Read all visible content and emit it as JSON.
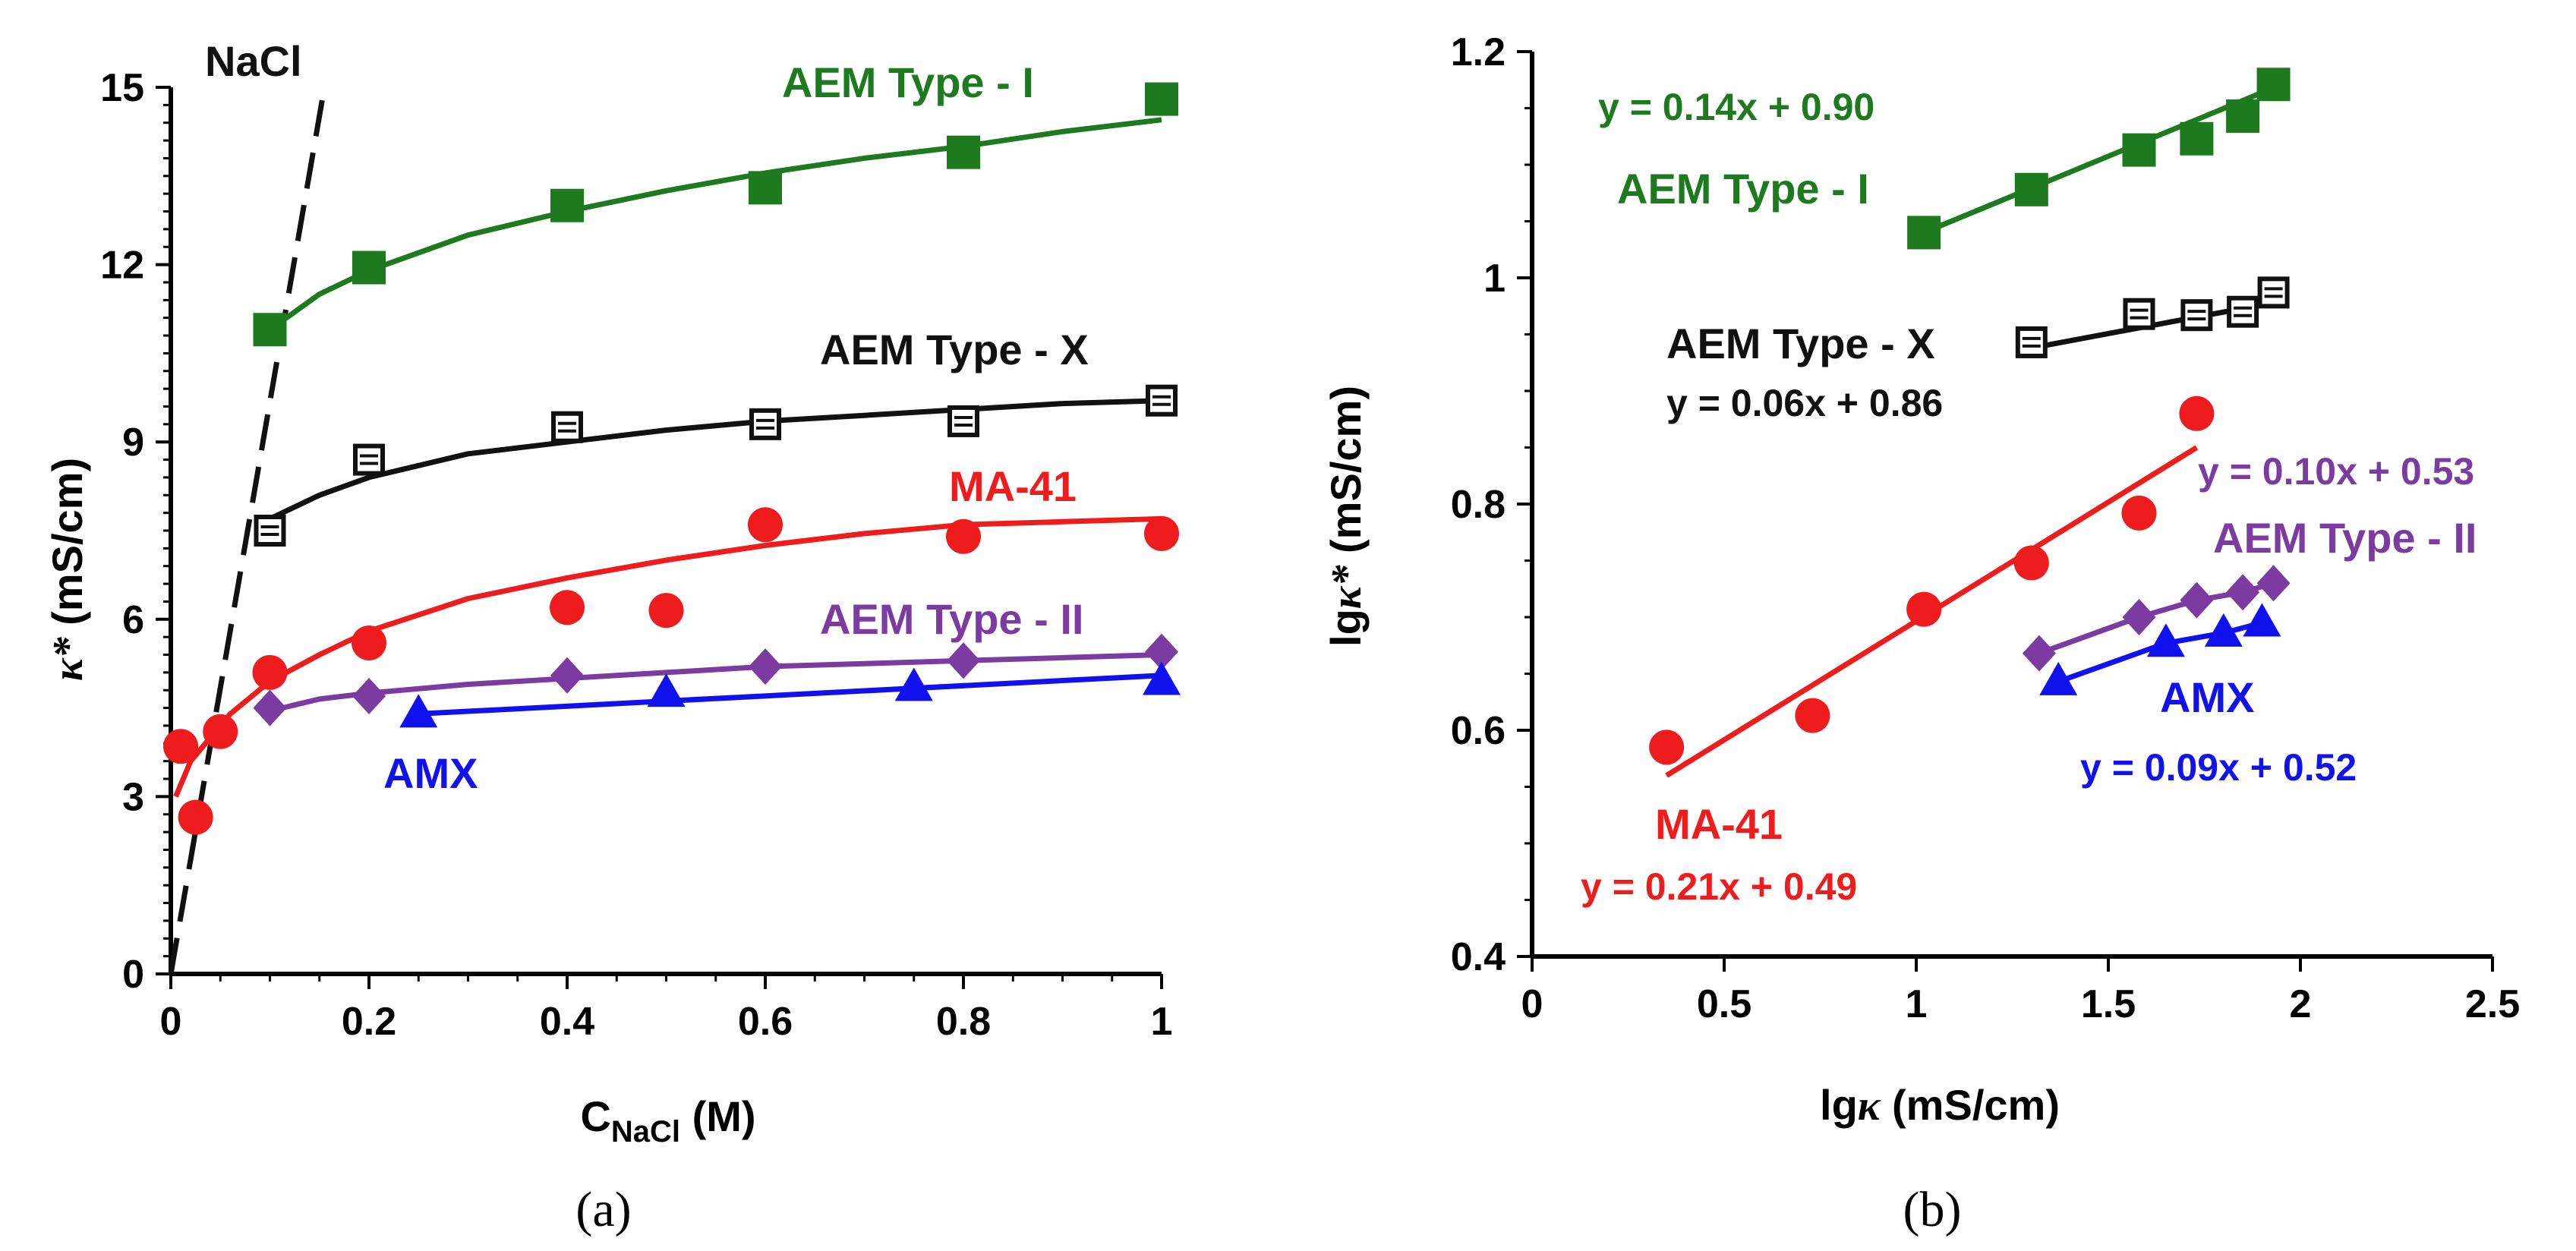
{
  "colors": {
    "type_i": "#1e7a1e",
    "type_x": "#111111",
    "ma41": "#ee1c1c",
    "type_ii": "#7b3ba0",
    "amx": "#1111ee",
    "nacl": "#111111"
  },
  "captions": {
    "a": "(a)",
    "b": "(b)"
  },
  "chart_data": [
    {
      "type": "scatter",
      "panel": "a",
      "xlabel_main": "C",
      "xlabel_sub": "NaCl",
      "xlabel_unit": " (M)",
      "ylabel_symbol": "κ*",
      "ylabel_unit": " (mS/cm)",
      "xlim": [
        0,
        1
      ],
      "ylim": [
        0,
        15
      ],
      "xticks": [
        "0",
        "0.2",
        "0.4",
        "0.6",
        "0.8",
        "1"
      ],
      "yticks": [
        "0",
        "3",
        "6",
        "9",
        "12",
        "15"
      ],
      "annotations": {
        "nacl": "NaCl",
        "type_i": "AEM Type - I",
        "type_x": "AEM Type - X",
        "ma41": "MA-41",
        "type_ii": "AEM Type - II",
        "amx": "AMX"
      },
      "nacl_line": {
        "x": [
          0,
          0.155
        ],
        "y": [
          0,
          15
        ]
      },
      "series": [
        {
          "name": "AEM Type - I",
          "marker": "square",
          "x": [
            0.1,
            0.2,
            0.4,
            0.6,
            0.8,
            1.0
          ],
          "y": [
            10.9,
            11.95,
            13.0,
            13.3,
            13.9,
            14.8
          ]
        },
        {
          "name": "AEM Type - X",
          "marker": "open-square",
          "x": [
            0.1,
            0.2,
            0.4,
            0.6,
            0.8,
            1.0
          ],
          "y": [
            7.5,
            8.7,
            9.25,
            9.3,
            9.35,
            9.7
          ]
        },
        {
          "name": "MA-41",
          "marker": "circle",
          "x": [
            0.01,
            0.025,
            0.05,
            0.1,
            0.2,
            0.4,
            0.5,
            0.6,
            0.8,
            1.0
          ],
          "y": [
            3.85,
            2.65,
            4.1,
            5.1,
            5.6,
            6.2,
            6.15,
            7.6,
            7.4,
            7.45
          ]
        },
        {
          "name": "AEM Type - II",
          "marker": "diamond",
          "x": [
            0.1,
            0.2,
            0.4,
            0.6,
            0.8,
            1.0
          ],
          "y": [
            4.5,
            4.7,
            5.05,
            5.2,
            5.3,
            5.45
          ]
        },
        {
          "name": "AMX",
          "marker": "triangle",
          "x": [
            0.25,
            0.5,
            0.75,
            1.0
          ],
          "y": [
            4.4,
            4.75,
            4.85,
            4.95
          ]
        }
      ],
      "fits": [
        {
          "name": "AEM Type - I",
          "x": [
            0.1,
            0.15,
            0.2,
            0.3,
            0.4,
            0.5,
            0.6,
            0.7,
            0.8,
            0.9,
            1.0
          ],
          "y": [
            10.9,
            11.5,
            11.9,
            12.5,
            12.9,
            13.25,
            13.55,
            13.8,
            14.0,
            14.25,
            14.45
          ]
        },
        {
          "name": "AEM Type - X",
          "x": [
            0.1,
            0.15,
            0.2,
            0.3,
            0.4,
            0.5,
            0.6,
            0.7,
            0.8,
            0.9,
            1.0
          ],
          "y": [
            7.7,
            8.1,
            8.4,
            8.8,
            9.0,
            9.2,
            9.35,
            9.45,
            9.55,
            9.65,
            9.7
          ]
        },
        {
          "name": "MA-41",
          "x": [
            0.005,
            0.02,
            0.04,
            0.06,
            0.1,
            0.15,
            0.2,
            0.3,
            0.4,
            0.5,
            0.6,
            0.7,
            0.8,
            0.9,
            1.0
          ],
          "y": [
            3.0,
            3.6,
            4.0,
            4.4,
            4.95,
            5.4,
            5.8,
            6.35,
            6.7,
            7.0,
            7.25,
            7.45,
            7.6,
            7.65,
            7.7
          ]
        },
        {
          "name": "AEM Type - II",
          "x": [
            0.1,
            0.15,
            0.2,
            0.3,
            0.4,
            0.5,
            0.6,
            0.7,
            0.8,
            0.9,
            1.0
          ],
          "y": [
            4.45,
            4.65,
            4.75,
            4.9,
            5.0,
            5.1,
            5.2,
            5.25,
            5.3,
            5.35,
            5.4
          ]
        },
        {
          "name": "AMX",
          "x": [
            0.25,
            1.0
          ],
          "y": [
            4.4,
            5.05
          ]
        }
      ]
    },
    {
      "type": "scatter",
      "panel": "b",
      "xlabel_prefix": "lg",
      "xlabel_symbol": "κ",
      "xlabel_unit": " (mS/cm)",
      "ylabel_prefix": "lg",
      "ylabel_symbol": "κ*",
      "ylabel_unit": " (mS/cm)",
      "xlim": [
        0,
        2.5
      ],
      "ylim": [
        0.4,
        1.2
      ],
      "xticks": [
        "0",
        "0.5",
        "1",
        "1.5",
        "2",
        "2.5"
      ],
      "yticks": [
        "0.4",
        "0.6",
        "0.8",
        "1",
        "1.2"
      ],
      "annotations": {
        "type_i": "AEM Type - I",
        "type_i_eq": "y = 0.14x + 0.90",
        "type_x": "AEM Type - X",
        "type_x_eq": "y = 0.06x + 0.86",
        "ma41": "MA-41",
        "ma41_eq": "y = 0.21x + 0.49",
        "type_ii": "AEM Type - II",
        "type_ii_eq": "y = 0.10x + 0.53",
        "amx": "AMX",
        "amx_eq": "y = 0.09x + 0.52"
      },
      "series": [
        {
          "name": "AEM Type - I",
          "marker": "square",
          "x": [
            1.02,
            1.3,
            1.58,
            1.73,
            1.85,
            1.93
          ],
          "y": [
            1.04,
            1.078,
            1.113,
            1.123,
            1.143,
            1.171
          ]
        },
        {
          "name": "AEM Type - X",
          "marker": "open-square",
          "x": [
            1.3,
            1.58,
            1.73,
            1.85,
            1.93
          ],
          "y": [
            0.943,
            0.968,
            0.967,
            0.97,
            0.987
          ]
        },
        {
          "name": "MA-41",
          "marker": "circle",
          "x": [
            0.35,
            0.73,
            1.02,
            1.3,
            1.58,
            1.73
          ],
          "y": [
            0.585,
            0.613,
            0.707,
            0.748,
            0.792,
            0.88
          ]
        },
        {
          "name": "AEM Type - II",
          "marker": "diamond",
          "x": [
            1.32,
            1.58,
            1.73,
            1.85,
            1.93
          ],
          "y": [
            0.668,
            0.7,
            0.715,
            0.722,
            0.73
          ]
        },
        {
          "name": "AMX",
          "marker": "triangle",
          "x": [
            1.37,
            1.65,
            1.8,
            1.9
          ],
          "y": [
            0.643,
            0.677,
            0.686,
            0.695
          ]
        }
      ],
      "fits": [
        {
          "name": "AEM Type - I",
          "x": [
            1.02,
            1.93
          ],
          "y": [
            1.04,
            1.168
          ]
        },
        {
          "name": "AEM Type - X",
          "x": [
            1.3,
            1.93
          ],
          "y": [
            0.938,
            0.978
          ]
        },
        {
          "name": "MA-41",
          "x": [
            0.35,
            1.73
          ],
          "y": [
            0.56,
            0.85
          ]
        },
        {
          "name": "AEM Type - II",
          "x": [
            1.32,
            1.58,
            1.73,
            1.85,
            1.93
          ],
          "y": [
            0.668,
            0.7,
            0.715,
            0.722,
            0.73
          ]
        },
        {
          "name": "AMX",
          "x": [
            1.37,
            1.65,
            1.8,
            1.9
          ],
          "y": [
            0.643,
            0.677,
            0.686,
            0.695
          ]
        }
      ]
    }
  ]
}
